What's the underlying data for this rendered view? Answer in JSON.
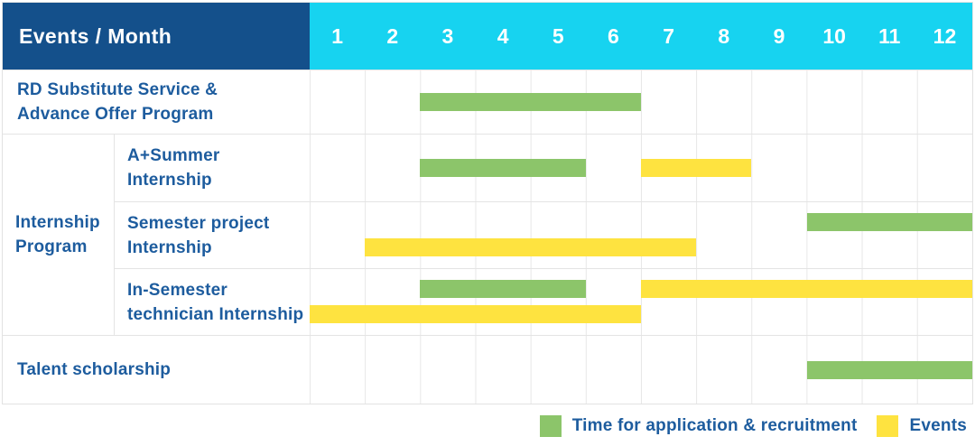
{
  "colors": {
    "header_bg": "#14508B",
    "month_header_bg": "#17D3F0",
    "application_green": "#8CC56A",
    "event_yellow": "#FEE340",
    "label_blue": "#1D5C9E",
    "grid_line": "#E7E7E7",
    "header_text": "#FFFFFF"
  },
  "header": {
    "corner_label": "Events / Month"
  },
  "chart_data": {
    "type": "bar",
    "subtype": "gantt-timeline",
    "title": "Events / Month",
    "x_unit": "month",
    "x_range": [
      1,
      12
    ],
    "grid": true,
    "legend_position": "bottom-right",
    "months": [
      "1",
      "2",
      "3",
      "4",
      "5",
      "6",
      "7",
      "8",
      "9",
      "10",
      "11",
      "12"
    ],
    "series_legend": [
      {
        "name": "Time for application & recruitment",
        "type": "application",
        "color": "#8CC56A"
      },
      {
        "name": "Events",
        "type": "event",
        "color": "#FEE340"
      }
    ],
    "group_label_lines": [
      "Internship",
      "Program"
    ],
    "rows": [
      {
        "group": "",
        "label": "RD Substitute Service & Advance Offer Program",
        "label_lines": [
          "RD Substitute Service &",
          "Advance Offer Program"
        ],
        "bars": [
          {
            "type": "application",
            "start_month": 3,
            "end_month": 6,
            "line": 0
          }
        ]
      },
      {
        "group": "Internship Program",
        "label": "A+Summer Internship",
        "label_lines": [
          "A+Summer",
          "Internship"
        ],
        "bars": [
          {
            "type": "application",
            "start_month": 3,
            "end_month": 5,
            "line": 0
          },
          {
            "type": "event",
            "start_month": 7,
            "end_month": 8,
            "line": 0
          }
        ]
      },
      {
        "group": "Internship Program",
        "label": "Semester project Internship",
        "label_lines": [
          "Semester project",
          "Internship"
        ],
        "bars": [
          {
            "type": "application",
            "start_month": 10,
            "end_month": 12,
            "line": 0
          },
          {
            "type": "event",
            "start_month": 2,
            "end_month": 7,
            "line": 1
          }
        ]
      },
      {
        "group": "Internship Program",
        "label": "In-Semester technician Internship",
        "label_lines": [
          "In-Semester",
          "technician Internship"
        ],
        "bars": [
          {
            "type": "application",
            "start_month": 3,
            "end_month": 5,
            "line": 0
          },
          {
            "type": "event",
            "start_month": 7,
            "end_month": 12,
            "line": 0
          },
          {
            "type": "event",
            "start_month": 1,
            "end_month": 6,
            "line": 1
          }
        ]
      },
      {
        "group": "",
        "label": "Talent scholarship",
        "label_lines": [
          "Talent scholarship"
        ],
        "bars": [
          {
            "type": "application",
            "start_month": 10,
            "end_month": 12,
            "line": 0
          }
        ]
      }
    ]
  },
  "legend": {
    "items": [
      {
        "label": "Time for application & recruitment",
        "type": "application"
      },
      {
        "label": "Events",
        "type": "event"
      }
    ]
  }
}
